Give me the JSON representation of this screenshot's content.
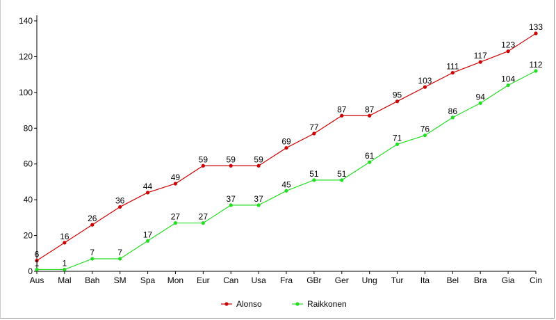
{
  "chart_data": {
    "type": "line",
    "categories": [
      "Aus",
      "Mal",
      "Bah",
      "SM",
      "Spa",
      "Mon",
      "Eur",
      "Can",
      "Usa",
      "Fra",
      "GBr",
      "Ger",
      "Ung",
      "Tur",
      "Ita",
      "Bel",
      "Bra",
      "Gia",
      "Cin"
    ],
    "series": [
      {
        "name": "Alonso",
        "color": "#cc0000",
        "values": [
          6,
          16,
          26,
          36,
          44,
          49,
          59,
          59,
          59,
          69,
          77,
          87,
          87,
          95,
          103,
          111,
          117,
          123,
          133
        ]
      },
      {
        "name": "Raikkonen",
        "color": "#22dd22",
        "values": [
          1,
          1,
          7,
          7,
          17,
          27,
          27,
          37,
          37,
          45,
          51,
          51,
          61,
          71,
          76,
          86,
          94,
          104,
          112
        ]
      }
    ],
    "yticks": [
      0,
      20,
      40,
      60,
      80,
      100,
      120,
      140
    ],
    "ylim": [
      0,
      140
    ],
    "grid": false,
    "legend_position": "bottom-center",
    "data_labels": true
  }
}
